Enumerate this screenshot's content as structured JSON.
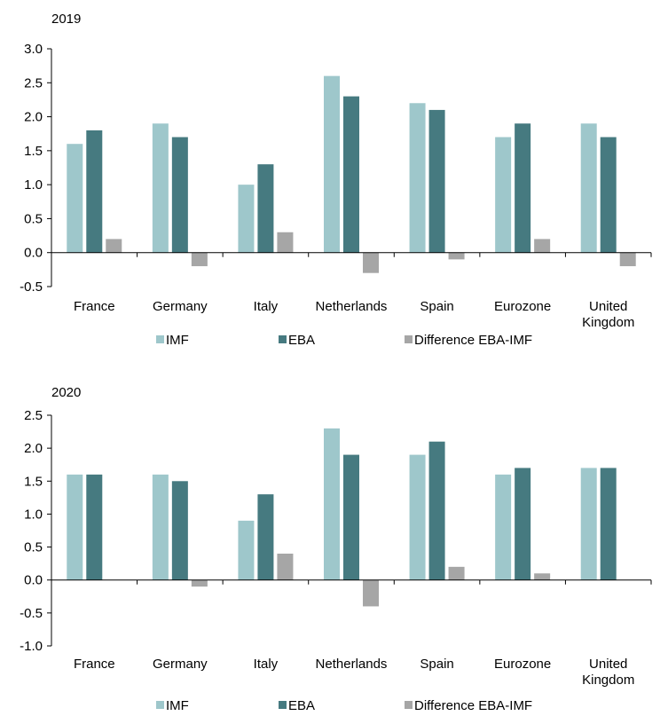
{
  "colors": {
    "imf": "#9ec7cb",
    "eba": "#467a80",
    "diff": "#a6a6a6",
    "axis": "#000000"
  },
  "chart_data": [
    {
      "type": "bar",
      "title": "2019",
      "categories": [
        [
          "France"
        ],
        [
          "Germany"
        ],
        [
          "Italy"
        ],
        [
          "Netherlands"
        ],
        [
          "Spain"
        ],
        [
          "Eurozone"
        ],
        [
          "United",
          "Kingdom"
        ]
      ],
      "series": [
        {
          "name": "IMF",
          "values": [
            1.6,
            1.9,
            1.0,
            2.6,
            2.2,
            1.7,
            1.9
          ]
        },
        {
          "name": "EBA",
          "values": [
            1.8,
            1.7,
            1.3,
            2.3,
            2.1,
            1.9,
            1.7
          ]
        },
        {
          "name": "Difference EBA-IMF",
          "values": [
            0.2,
            -0.2,
            0.3,
            -0.3,
            -0.1,
            0.2,
            -0.2
          ]
        }
      ],
      "ylim": [
        -0.5,
        3.0
      ],
      "yticks": [
        "3.0",
        "2.5",
        "2.0",
        "1.5",
        "1.0",
        "0.5",
        "0.0",
        "-0.5"
      ],
      "grid": false,
      "legend": "bottom"
    },
    {
      "type": "bar",
      "title": "2020",
      "categories": [
        [
          "France"
        ],
        [
          "Germany"
        ],
        [
          "Italy"
        ],
        [
          "Netherlands"
        ],
        [
          "Spain"
        ],
        [
          "Eurozone"
        ],
        [
          "United",
          "Kingdom"
        ]
      ],
      "series": [
        {
          "name": "IMF",
          "values": [
            1.6,
            1.6,
            0.9,
            2.3,
            1.9,
            1.6,
            1.7
          ]
        },
        {
          "name": "EBA",
          "values": [
            1.6,
            1.5,
            1.3,
            1.9,
            2.1,
            1.7,
            1.7
          ]
        },
        {
          "name": "Difference EBA-IMF",
          "values": [
            0.0,
            -0.1,
            0.4,
            -0.4,
            0.2,
            0.1,
            0.0
          ]
        }
      ],
      "ylim": [
        -1.0,
        2.5
      ],
      "yticks": [
        "2.5",
        "2.0",
        "1.5",
        "1.0",
        "0.5",
        "0.0",
        "-0.5",
        "-1.0"
      ],
      "grid": false,
      "legend": "bottom"
    }
  ]
}
